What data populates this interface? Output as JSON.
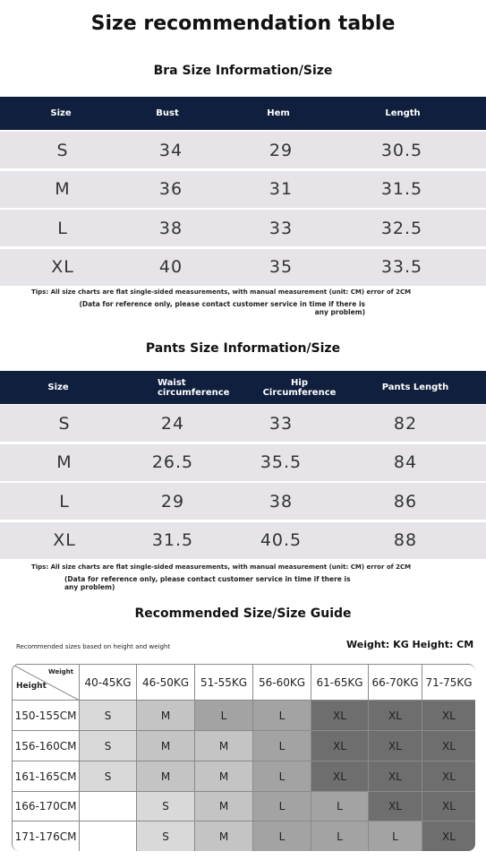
{
  "title": "Size recommendation table",
  "bra": {
    "title": "Bra Size Information/Size",
    "columns": [
      "Size",
      "Bust",
      "Hem",
      "Length"
    ],
    "rows": [
      [
        "S",
        34,
        29,
        30.5
      ],
      [
        "M",
        36,
        31,
        31.5
      ],
      [
        "L",
        38,
        33,
        32.5
      ],
      [
        "XL",
        40,
        35,
        33.5
      ]
    ],
    "tip": "Tips: All size charts are flat single-sided measurements, with manual measurement (unit: CM) error of 2CM",
    "note": "(Data for reference only, please contact customer service in time if there is any problem)"
  },
  "pants": {
    "title": "Pants Size Information/Size",
    "columns": [
      "Size",
      "Waist circumference",
      "Hip Circumference",
      "Pants Length"
    ],
    "rows": [
      [
        "S",
        24,
        33,
        82
      ],
      [
        "M",
        26.5,
        35.5,
        84
      ],
      [
        "L",
        29,
        38,
        86
      ],
      [
        "XL",
        31.5,
        40.5,
        88
      ]
    ],
    "tip": "Tips: All size charts are flat single-sided measurements, with manual measurement (unit: CM) error of 2CM",
    "note": "(Data for reference only, please contact customer service in time if there is any problem)"
  },
  "guide": {
    "title": "Recommended Size/Size Guide",
    "caption": "Recommended sizes based on height and weight",
    "units": "Weight: KG Height: CM",
    "corner": {
      "top": "Weight",
      "left": "Height"
    },
    "columns": [
      "40-45KG",
      "46-50KG",
      "51-55KG",
      "56-60KG",
      "61-65KG",
      "66-70KG",
      "71-75KG"
    ],
    "rows": [
      {
        "height": "150-155CM",
        "sizes": [
          "S",
          "M",
          "L",
          "L",
          "XL",
          "XL",
          "XL"
        ]
      },
      {
        "height": "156-160CM",
        "sizes": [
          "S",
          "M",
          "M",
          "L",
          "XL",
          "XL",
          "XL"
        ]
      },
      {
        "height": "161-165CM",
        "sizes": [
          "S",
          "M",
          "M",
          "L",
          "XL",
          "XL",
          "XL"
        ]
      },
      {
        "height": "166-170CM",
        "sizes": [
          null,
          "S",
          "M",
          "L",
          "L",
          "XL",
          "XL"
        ]
      },
      {
        "height": "171-176CM",
        "sizes": [
          null,
          "S",
          "M",
          "L",
          "L",
          "L",
          "XL"
        ]
      }
    ]
  }
}
